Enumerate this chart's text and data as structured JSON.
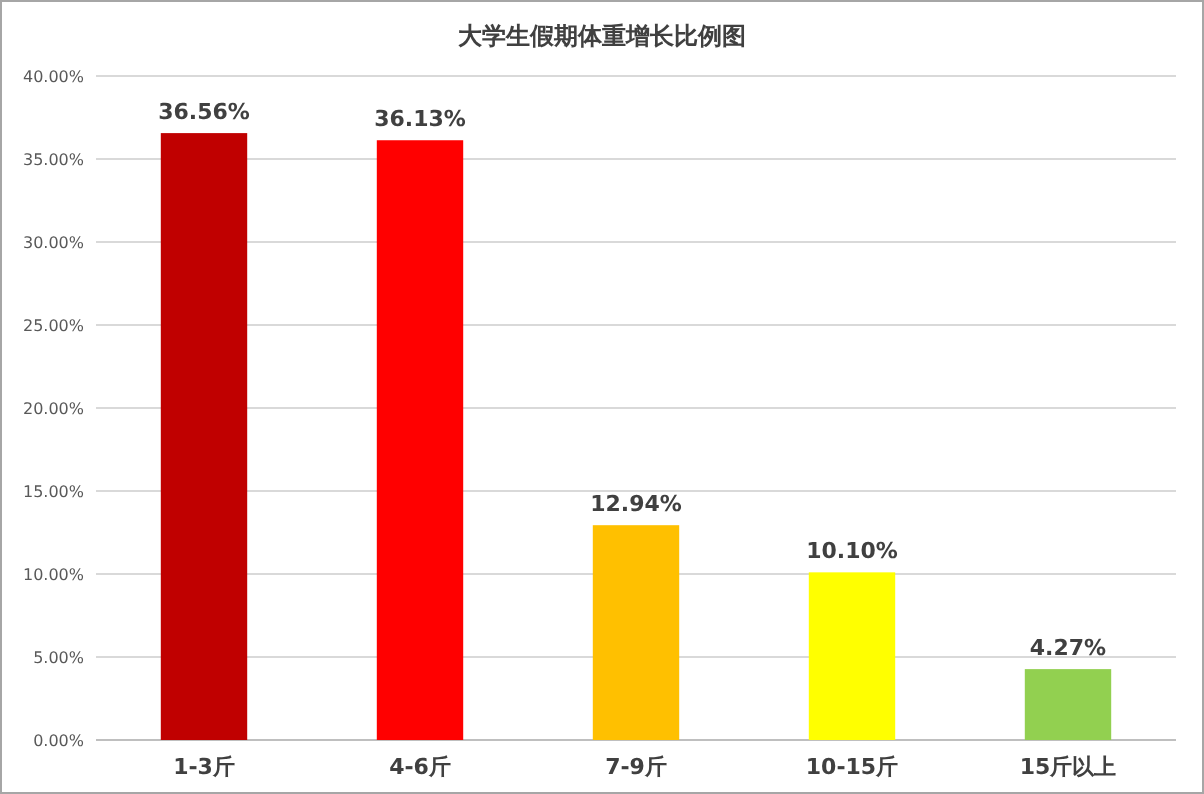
{
  "chart_data": {
    "type": "bar",
    "title": "大学生假期体重增长比例图",
    "categories": [
      "1-3斤",
      "4-6斤",
      "7-9斤",
      "10-15斤",
      "15斤以上"
    ],
    "values": [
      36.56,
      36.13,
      12.94,
      10.1,
      4.27
    ],
    "colors": [
      "#c00000",
      "#ff0000",
      "#ffc000",
      "#ffff00",
      "#92d050"
    ],
    "value_labels": [
      "36.56%",
      "36.13%",
      "12.94%",
      "10.10%",
      "4.27%"
    ],
    "ylim": [
      0,
      40
    ],
    "yticks": [
      {
        "value": 0,
        "label": "0.00%"
      },
      {
        "value": 5,
        "label": "5.00%"
      },
      {
        "value": 10,
        "label": "10.00%"
      },
      {
        "value": 15,
        "label": "15.00%"
      },
      {
        "value": 20,
        "label": "20.00%"
      },
      {
        "value": 25,
        "label": "25.00%"
      },
      {
        "value": 30,
        "label": "30.00%"
      },
      {
        "value": 35,
        "label": "35.00%"
      },
      {
        "value": 40,
        "label": "40.00%"
      }
    ],
    "grid": "y"
  }
}
